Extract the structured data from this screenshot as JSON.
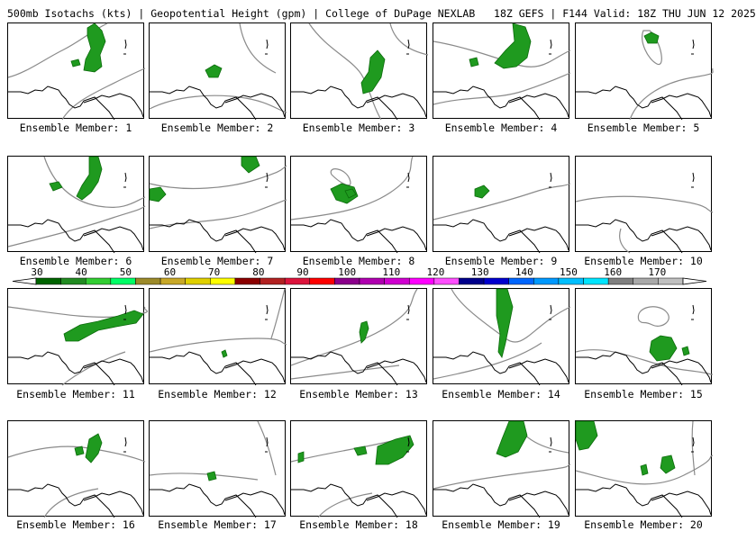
{
  "header": {
    "title": "500mb Isotachs (kts) | Geopotential Height (gpm) | College of DuPage NEXLAB   18Z GEFS | F144 Valid: 18Z THU JUN 12 2025"
  },
  "colorbar": {
    "labels": [
      "30",
      "40",
      "50",
      "60",
      "70",
      "80",
      "90",
      "100",
      "110",
      "120",
      "130",
      "140",
      "150",
      "160",
      "170"
    ],
    "colors": [
      "#006400",
      "#228B22",
      "#32CD32",
      "#00FF66",
      "#9C8A2A",
      "#C8A828",
      "#E0D000",
      "#FFFF00",
      "#8B0000",
      "#B22222",
      "#DC143C",
      "#FF0000",
      "#8B008B",
      "#B000B0",
      "#D000D0",
      "#FF00FF",
      "#FF4FFF",
      "#00008B",
      "#0000CD",
      "#0066FF",
      "#0099FF",
      "#00BFFF",
      "#00E5FF",
      "#808080",
      "#A9A9A9",
      "#C0C0C0"
    ]
  },
  "panels": [
    {
      "label": "Ensemble Member: 1"
    },
    {
      "label": "Ensemble Member: 2"
    },
    {
      "label": "Ensemble Member: 3"
    },
    {
      "label": "Ensemble Member: 4"
    },
    {
      "label": "Ensemble Member: 5"
    },
    {
      "label": "Ensemble Member: 6"
    },
    {
      "label": "Ensemble Member: 7"
    },
    {
      "label": "Ensemble Member: 8"
    },
    {
      "label": "Ensemble Member: 9"
    },
    {
      "label": "Ensemble Member: 10"
    },
    {
      "label": "Ensemble Member: 11"
    },
    {
      "label": "Ensemble Member: 12"
    },
    {
      "label": "Ensemble Member: 13"
    },
    {
      "label": "Ensemble Member: 14"
    },
    {
      "label": "Ensemble Member: 15"
    },
    {
      "label": "Ensemble Member: 16"
    },
    {
      "label": "Ensemble Member: 17"
    },
    {
      "label": "Ensemble Member: 18"
    },
    {
      "label": "Ensemble Member: 19"
    },
    {
      "label": "Ensemble Member: 20"
    }
  ]
}
